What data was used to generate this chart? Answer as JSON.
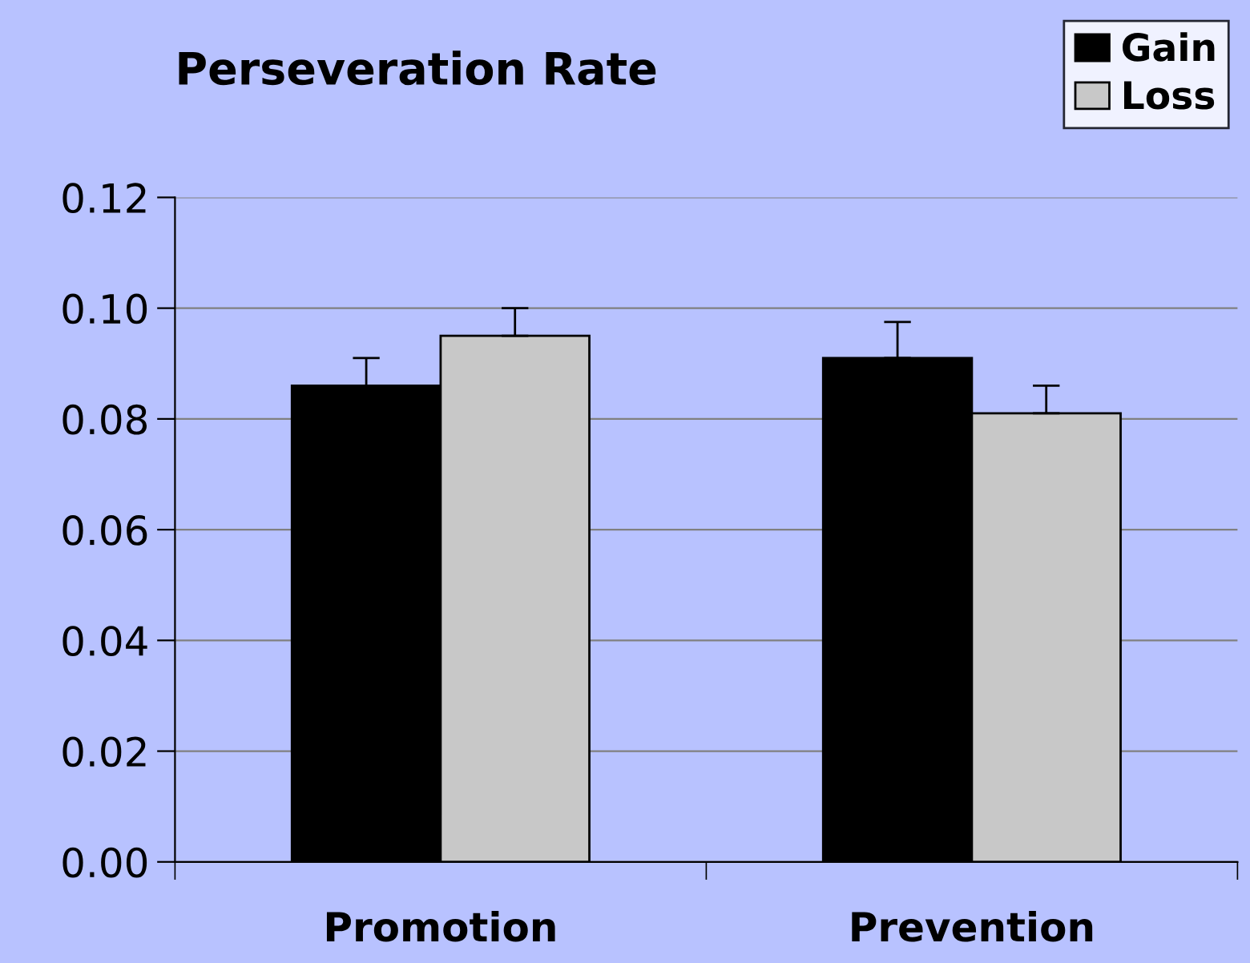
{
  "chart_data": {
    "type": "bar",
    "title": "Perseveration Rate",
    "categories": [
      "Promotion",
      "Prevention"
    ],
    "series": [
      {
        "name": "Gain",
        "color": "#000000",
        "values": [
          0.086,
          0.091
        ],
        "errors": [
          0.005,
          0.0065
        ]
      },
      {
        "name": "Loss",
        "color": "#c8c8c8",
        "values": [
          0.095,
          0.081
        ],
        "errors": [
          0.005,
          0.005
        ]
      }
    ],
    "ylim": [
      0,
      0.12
    ],
    "yticks": [
      {
        "value": 0,
        "label": "0.00"
      },
      {
        "value": 0.02,
        "label": "0.02"
      },
      {
        "value": 0.04,
        "label": "0.04"
      },
      {
        "value": 0.06,
        "label": "0.06"
      },
      {
        "value": 0.08,
        "label": "0.08"
      },
      {
        "value": 0.1,
        "label": "0.10"
      },
      {
        "value": 0.12,
        "label": "0.12"
      }
    ],
    "grid": "y",
    "legend": "top right"
  }
}
